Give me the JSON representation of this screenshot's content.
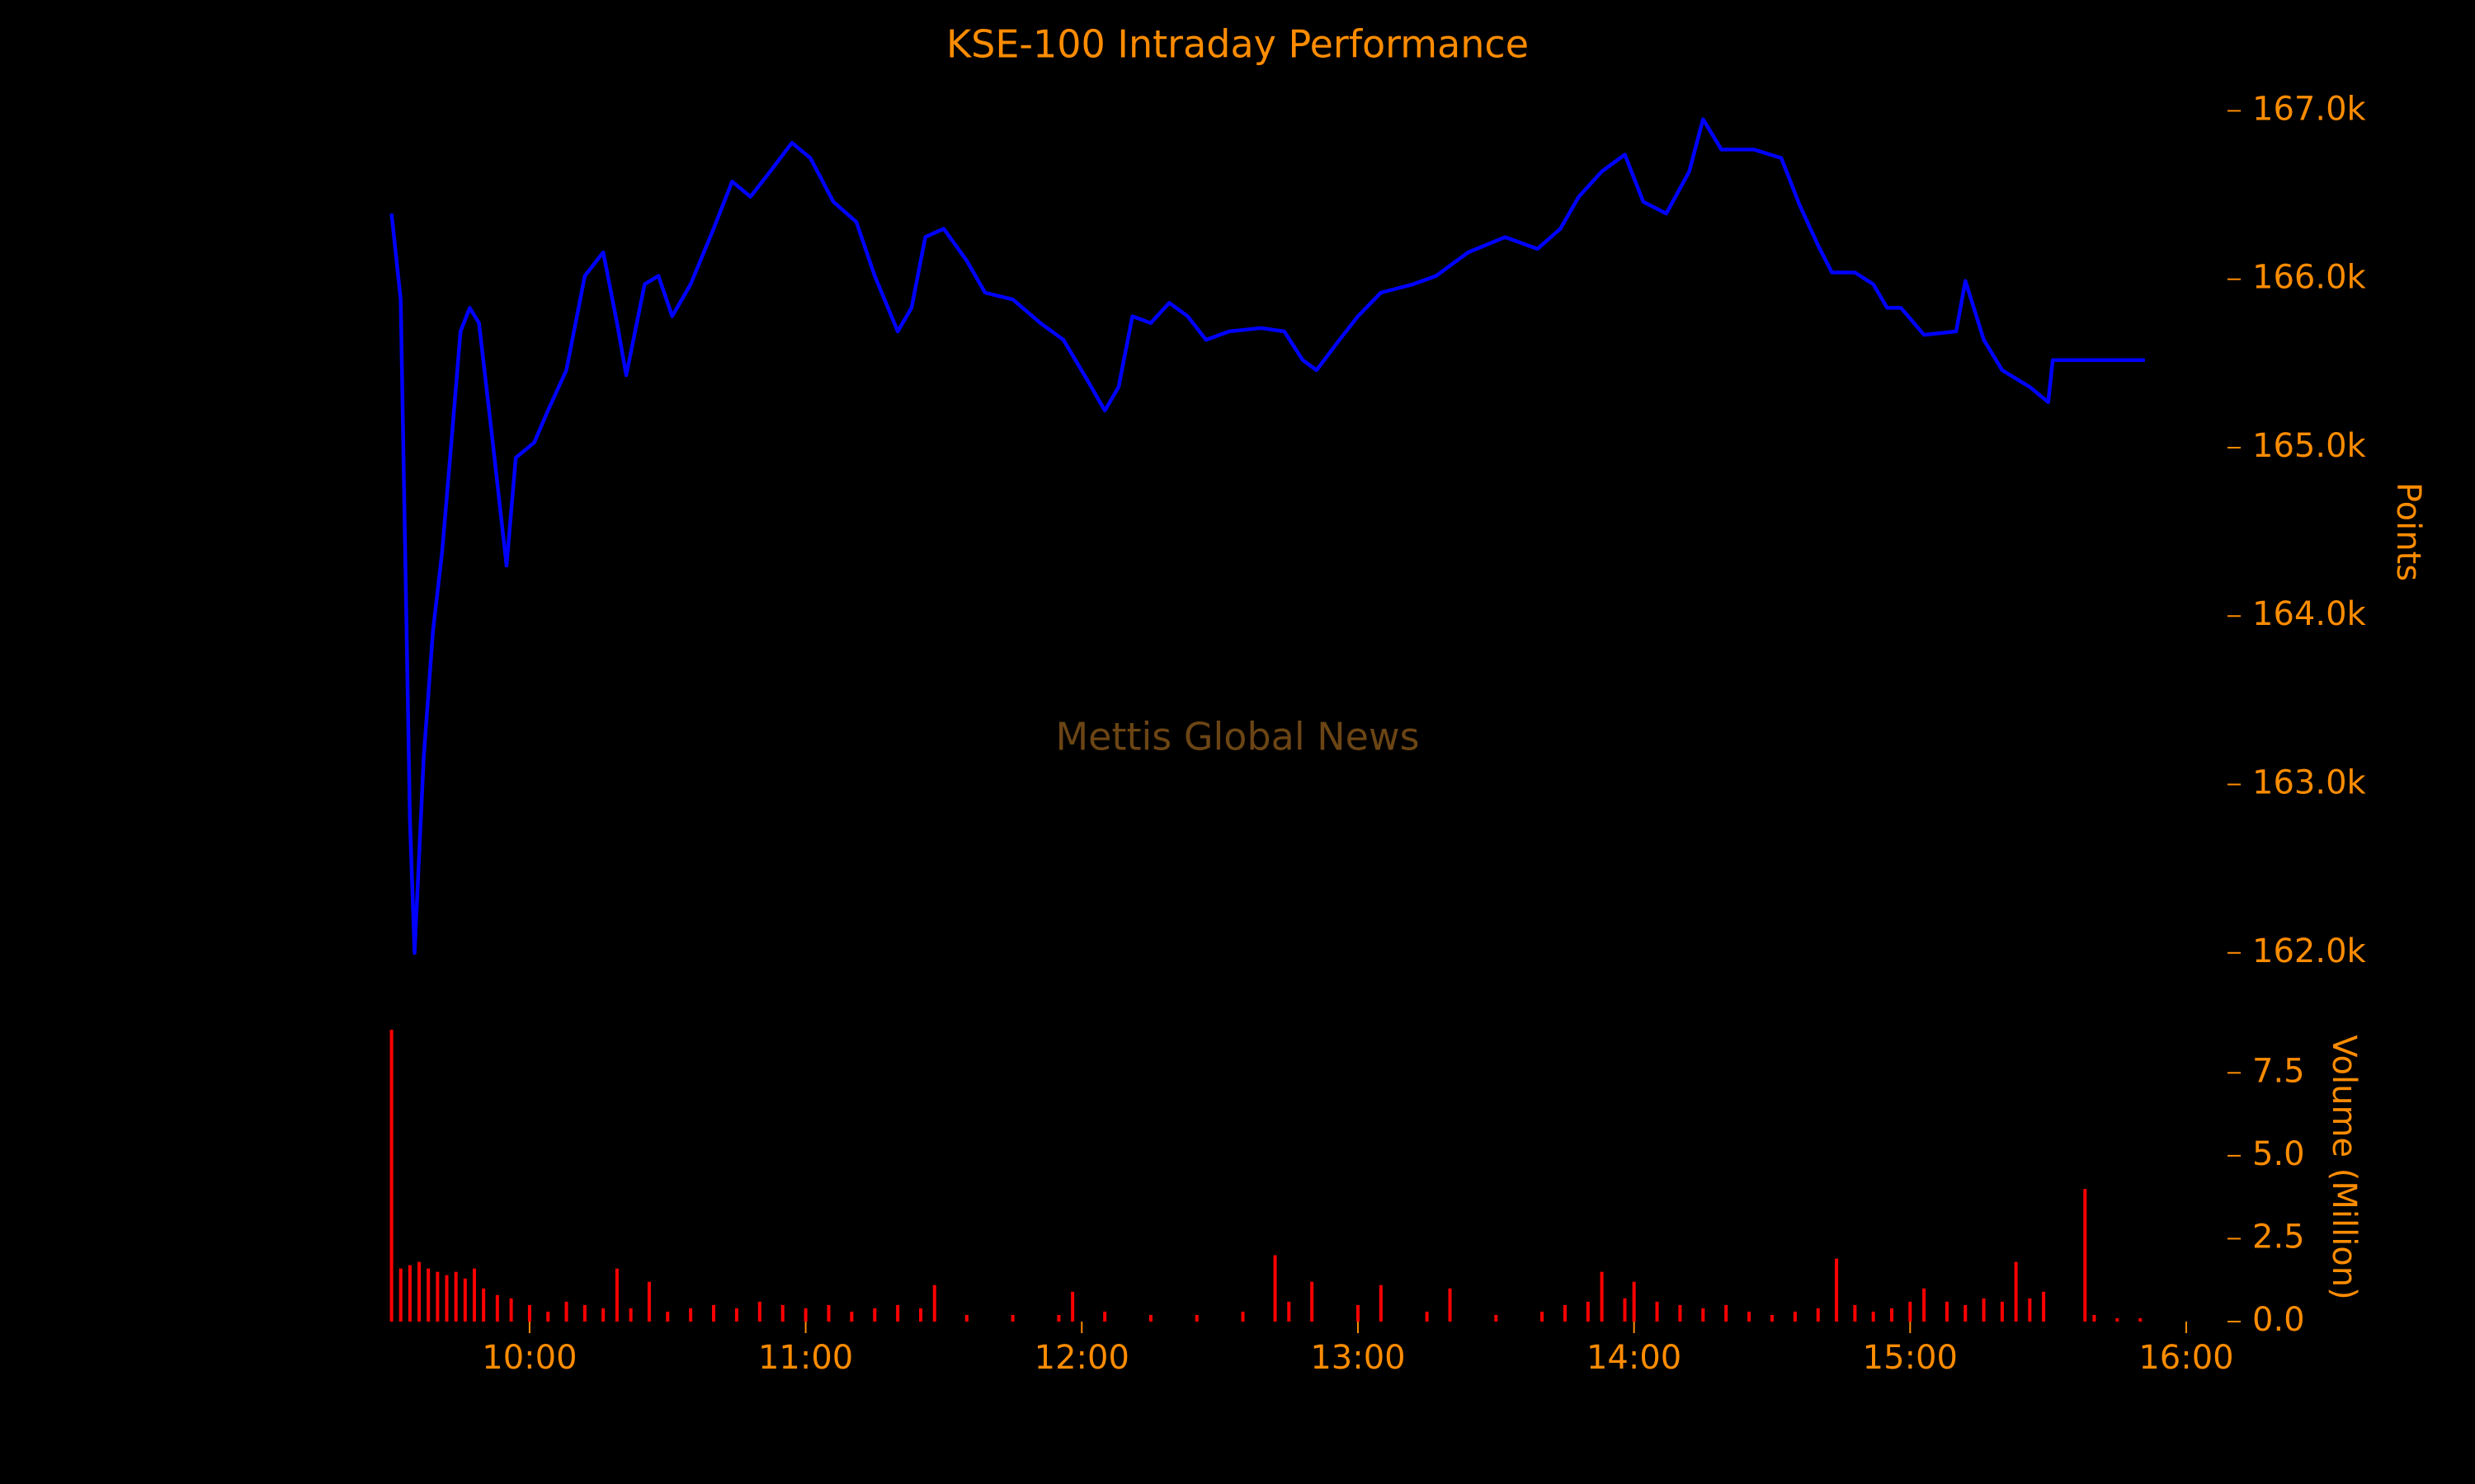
{
  "chart_data": [
    {
      "type": "line",
      "title": "KSE-100 Intraday Performance",
      "watermark": "Mettis Global News",
      "ylabel": "Points",
      "color": "#0000ff",
      "x": [
        "09:30",
        "09:32",
        "09:34",
        "09:35",
        "09:37",
        "09:39",
        "09:41",
        "09:43",
        "09:45",
        "09:47",
        "09:49",
        "09:52",
        "09:55",
        "09:57",
        "10:01",
        "10:04",
        "10:08",
        "10:12",
        "10:16",
        "10:19",
        "10:21",
        "10:25",
        "10:28",
        "10:31",
        "10:35",
        "10:40",
        "10:44",
        "10:48",
        "10:52",
        "10:57",
        "11:01",
        "11:06",
        "11:11",
        "11:15",
        "11:20",
        "11:23",
        "11:26",
        "11:30",
        "11:35",
        "11:39",
        "11:45",
        "11:51",
        "11:56",
        "12:01",
        "12:05",
        "12:08",
        "12:11",
        "12:15",
        "12:19",
        "12:23",
        "12:27",
        "12:32",
        "12:39",
        "12:44",
        "12:48",
        "12:51",
        "12:56",
        "13:00",
        "13:05",
        "13:12",
        "13:17",
        "13:24",
        "13:32",
        "13:39",
        "13:44",
        "13:48",
        "13:53",
        "13:58",
        "14:02",
        "14:07",
        "14:12",
        "14:15",
        "14:19",
        "14:26",
        "14:32",
        "14:36",
        "14:40",
        "14:43",
        "14:48",
        "14:52",
        "14:55",
        "14:58",
        "15:03",
        "15:10",
        "15:12",
        "15:16",
        "15:20",
        "15:26",
        "15:30",
        "15:31",
        "15:51"
      ],
      "values": [
        166.39,
        165.88,
        162.79,
        162.0,
        163.16,
        163.91,
        164.38,
        165.03,
        165.69,
        165.83,
        165.74,
        165.03,
        164.3,
        164.94,
        165.03,
        165.22,
        165.46,
        166.02,
        166.16,
        165.74,
        165.43,
        165.97,
        166.02,
        165.78,
        165.97,
        166.3,
        166.58,
        166.49,
        166.63,
        166.81,
        166.72,
        166.46,
        166.34,
        166.02,
        165.69,
        165.83,
        166.25,
        166.3,
        166.11,
        165.92,
        165.88,
        165.74,
        165.64,
        165.41,
        165.22,
        165.36,
        165.78,
        165.74,
        165.86,
        165.78,
        165.64,
        165.69,
        165.71,
        165.69,
        165.52,
        165.46,
        165.64,
        165.78,
        165.92,
        165.97,
        166.02,
        166.16,
        166.25,
        166.18,
        166.3,
        166.49,
        166.64,
        166.74,
        166.46,
        166.39,
        166.64,
        166.95,
        166.77,
        166.77,
        166.72,
        166.44,
        166.2,
        166.04,
        166.04,
        165.97,
        165.83,
        165.83,
        165.67,
        165.69,
        165.99,
        165.64,
        165.46,
        165.36,
        165.27,
        165.52,
        165.52
      ],
      "xlim": [
        "09:29",
        "16:00"
      ],
      "ylim": [
        161.95,
        167.1
      ],
      "yticks": [
        {
          "value": 162,
          "label": "162.0k"
        },
        {
          "value": 163,
          "label": "163.0k"
        },
        {
          "value": 164,
          "label": "164.0k"
        },
        {
          "value": 165,
          "label": "165.0k"
        },
        {
          "value": 166,
          "label": "166.0k"
        },
        {
          "value": 167,
          "label": "167.0k"
        }
      ]
    },
    {
      "type": "bar",
      "ylabel": "Volume (Million)",
      "color": "#ff0000",
      "x": [
        "09:30",
        "09:32",
        "09:34",
        "09:36",
        "09:38",
        "09:40",
        "09:42",
        "09:44",
        "09:46",
        "09:48",
        "09:50",
        "09:53",
        "09:56",
        "10:00",
        "10:04",
        "10:08",
        "10:12",
        "10:16",
        "10:19",
        "10:22",
        "10:26",
        "10:30",
        "10:35",
        "10:40",
        "10:45",
        "10:50",
        "10:55",
        "11:00",
        "11:05",
        "11:10",
        "11:15",
        "11:20",
        "11:25",
        "11:28",
        "11:35",
        "11:45",
        "11:55",
        "11:58",
        "12:05",
        "12:15",
        "12:25",
        "12:35",
        "12:42",
        "12:45",
        "12:50",
        "13:00",
        "13:05",
        "13:15",
        "13:20",
        "13:30",
        "13:40",
        "13:45",
        "13:50",
        "13:53",
        "13:58",
        "14:00",
        "14:05",
        "14:10",
        "14:15",
        "14:20",
        "14:25",
        "14:30",
        "14:35",
        "14:40",
        "14:44",
        "14:48",
        "14:52",
        "14:56",
        "15:00",
        "15:03",
        "15:08",
        "15:12",
        "15:16",
        "15:20",
        "15:23",
        "15:26",
        "15:29",
        "15:38",
        "15:40",
        "15:45",
        "15:50"
      ],
      "values": [
        8.8,
        1.6,
        1.7,
        1.8,
        1.6,
        1.5,
        1.4,
        1.5,
        1.3,
        1.6,
        1.0,
        0.8,
        0.7,
        0.5,
        0.3,
        0.6,
        0.5,
        0.4,
        1.6,
        0.4,
        1.2,
        0.3,
        0.4,
        0.5,
        0.4,
        0.6,
        0.5,
        0.4,
        0.5,
        0.3,
        0.4,
        0.5,
        0.4,
        1.1,
        0.2,
        0.2,
        0.2,
        0.9,
        0.3,
        0.2,
        0.2,
        0.3,
        2.0,
        0.6,
        1.2,
        0.5,
        1.1,
        0.3,
        1.0,
        0.2,
        0.3,
        0.5,
        0.6,
        1.5,
        0.7,
        1.2,
        0.6,
        0.5,
        0.4,
        0.5,
        0.3,
        0.2,
        0.3,
        0.4,
        1.9,
        0.5,
        0.3,
        0.4,
        0.6,
        1.0,
        0.6,
        0.5,
        0.7,
        0.6,
        1.8,
        0.7,
        0.9,
        4.0,
        0.2,
        0.1,
        0.1
      ],
      "xlim": [
        "09:29",
        "16:00"
      ],
      "ylim": [
        0,
        8.8
      ],
      "yticks": [
        {
          "value": 0,
          "label": "0.0"
        },
        2.5,
        {
          "value": 5,
          "label": "5.0"
        },
        7.5
      ],
      "xticks": [
        "10:00",
        "11:00",
        "12:00",
        "13:00",
        "14:00",
        "15:00",
        "16:00"
      ]
    }
  ]
}
